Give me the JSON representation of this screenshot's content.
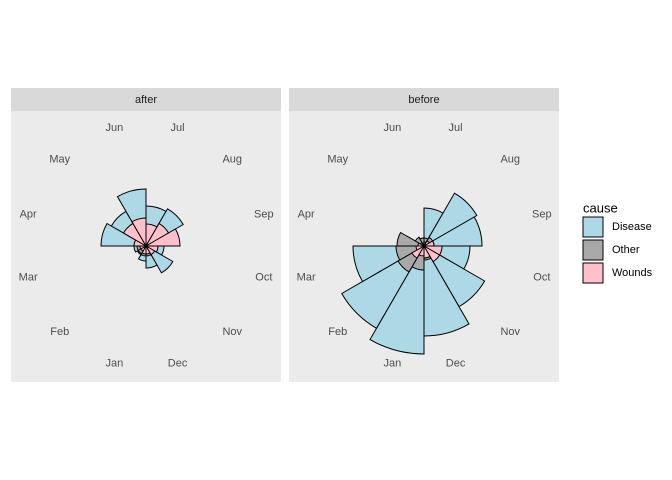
{
  "chart_data": {
    "type": "rose",
    "categories": [
      "Jan",
      "Feb",
      "Mar",
      "Apr",
      "May",
      "Jun",
      "Jul",
      "Aug",
      "Sep",
      "Oct",
      "Nov",
      "Dec"
    ],
    "legend_title": "cause",
    "legend_position": "right",
    "series": [
      {
        "name": "Disease",
        "color": "#add8e6"
      },
      {
        "name": "Other",
        "color": "#a9a9a9"
      },
      {
        "name": "Wounds",
        "color": "#ffc0cb"
      }
    ],
    "facets": [
      {
        "label": "after",
        "values": [
          [
            15,
            10,
            12,
            45,
            40,
            57,
            40,
            43,
            20,
            18,
            31,
            22
          ],
          [
            10,
            9,
            9,
            10,
            10,
            12,
            12,
            10,
            8,
            8,
            8,
            10
          ],
          [
            8,
            6,
            6,
            12,
            26,
            28,
            22,
            26,
            34,
            12,
            10,
            8
          ]
        ]
      },
      {
        "label": "before",
        "values": [
          [
            108,
            95,
            71,
            20,
            10,
            8,
            38,
            61,
            58,
            46,
            70,
            90
          ],
          [
            24,
            30,
            28,
            27,
            10,
            8,
            8,
            10,
            10,
            12,
            12,
            14
          ],
          [
            10,
            14,
            8,
            6,
            4,
            3,
            4,
            6,
            10,
            18,
            18,
            12
          ]
        ]
      }
    ]
  }
}
